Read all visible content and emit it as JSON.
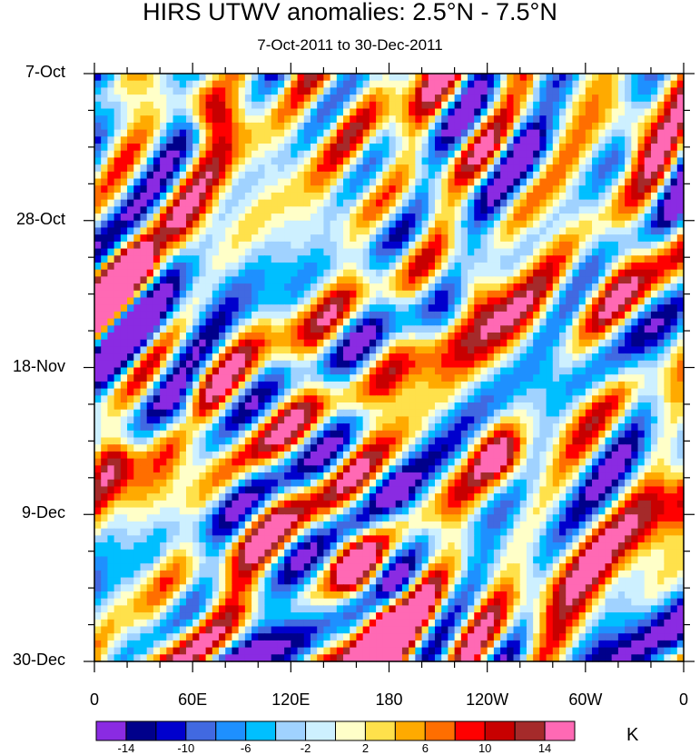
{
  "chart_data": {
    "type": "heatmap",
    "title": "HIRS UTWV anomalies: 2.5°N - 7.5°N",
    "subtitle": "7-Oct-2011 to 30-Dec-2011",
    "xlabel": "",
    "ylabel": "",
    "x_range": [
      0,
      360
    ],
    "y_range": [
      "7-Oct-2011",
      "30-Dec-2011"
    ],
    "x_ticks": [
      "0",
      "60E",
      "120E",
      "180",
      "120W",
      "60W",
      "0"
    ],
    "y_ticks": [
      "7-Oct",
      "28-Oct",
      "18-Nov",
      "9-Dec",
      "30-Dec"
    ],
    "colorbar": {
      "units": "K",
      "levels": [
        "-14",
        "-12",
        "-10",
        "-8",
        "-6",
        "-4",
        "-2",
        "0",
        "2",
        "4",
        "6",
        "8",
        "10",
        "12",
        "14"
      ],
      "colors": [
        "#8a2be2",
        "#00008b",
        "#0000cd",
        "#4169e1",
        "#1e90ff",
        "#00bfff",
        "#a0d2ff",
        "#cdf0ff",
        "#ffffc8",
        "#ffe14b",
        "#ffaa00",
        "#ff6e00",
        "#ff0000",
        "#c80000",
        "#a52a2a",
        "#ff69b4"
      ]
    },
    "features": [
      {
        "lon": 70,
        "day": 5,
        "value": 14
      },
      {
        "lon": 160,
        "day": 70,
        "value": 14
      },
      {
        "lon": 175,
        "day": 78,
        "value": 14
      },
      {
        "lon": 168,
        "day": 84,
        "value": 15
      },
      {
        "lon": 10,
        "day": 55,
        "value": 11
      },
      {
        "lon": 230,
        "day": 30,
        "value": 10
      },
      {
        "lon": 55,
        "day": 49,
        "value": -12
      },
      {
        "lon": 40,
        "day": 25,
        "value": -10
      },
      {
        "lon": 262,
        "day": 10,
        "value": -7
      },
      {
        "lon": 330,
        "day": 8,
        "value": 9
      },
      {
        "lon": 250,
        "day": 55,
        "value": 10
      },
      {
        "lon": 185,
        "day": 60,
        "value": -7
      }
    ]
  }
}
